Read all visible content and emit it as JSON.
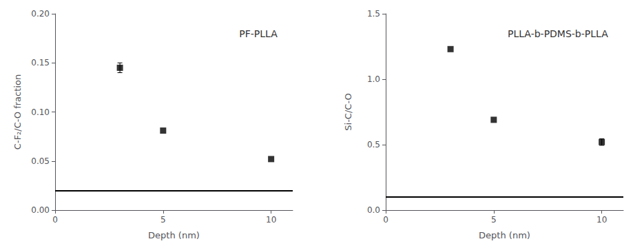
{
  "chart_data": [
    {
      "type": "scatter",
      "title": "PF-PLLA",
      "xlabel": "Depth (nm)",
      "ylabel": "C-F₂/C-O fraction",
      "x": [
        3,
        5,
        10
      ],
      "values": [
        0.145,
        0.081,
        0.052
      ],
      "yerr": [
        0.005,
        0.0,
        0.0
      ],
      "hline": 0.022,
      "color": "black",
      "marker": "square",
      "xlim": [
        0,
        11
      ],
      "xticks": [
        0,
        5,
        10
      ],
      "ylim": [
        0.0,
        0.2
      ],
      "yticks": [
        {
          "value": 0.0,
          "label": "0.00"
        },
        0.05,
        {
          "value": 0.1,
          "label": "0.10"
        },
        0.15,
        {
          "value": 0.2,
          "label": "0.20"
        }
      ],
      "grid": false
    },
    {
      "type": "scatter",
      "title": "PLLA-b-PDMS-b-PLLA",
      "xlabel": "Depth (nm)",
      "ylabel": "Si-C/C-O",
      "x": [
        3,
        5,
        10
      ],
      "values": [
        1.23,
        0.69,
        0.52
      ],
      "yerr": [
        0.0,
        0.0,
        0.025
      ],
      "hline": 0.1,
      "color": "black",
      "marker": "square",
      "xlim": [
        0,
        11
      ],
      "xticks": [
        0,
        5,
        10
      ],
      "ylim": [
        0.0,
        1.5
      ],
      "yticks": [
        {
          "value": 0.0,
          "label": "0.0"
        },
        0.5,
        {
          "value": 1.0,
          "label": "1.0"
        },
        1.5
      ],
      "grid": false
    }
  ]
}
